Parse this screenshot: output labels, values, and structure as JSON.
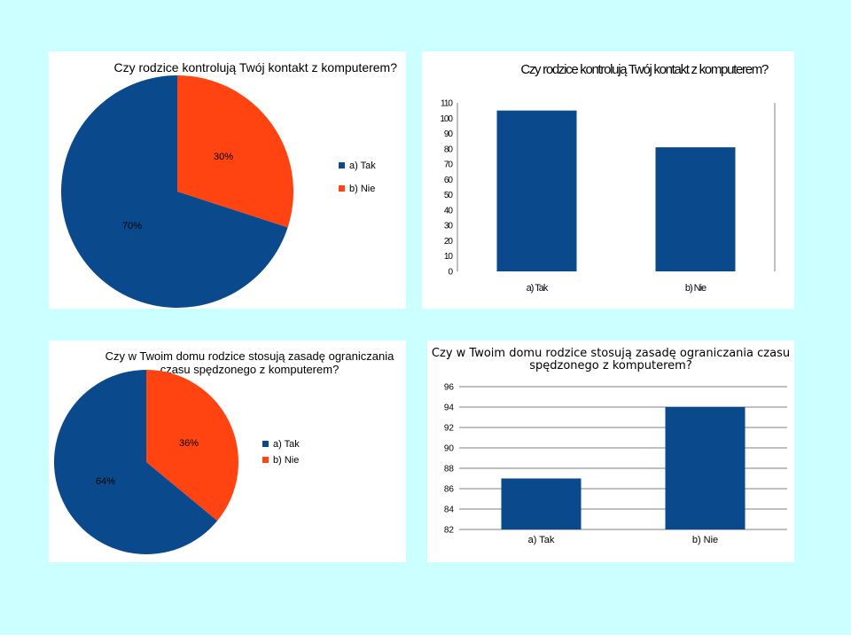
{
  "colors": {
    "tak": "#0a4a8c",
    "nie": "#ff4411",
    "background": "#ccffff",
    "panel": "#ffffff"
  },
  "chart_data": [
    {
      "type": "pie",
      "title": "Czy rodzice kontrolują Twój kontakt z komputerem?",
      "categories": [
        "a) Tak",
        "b) Nie"
      ],
      "values": [
        70,
        30
      ],
      "data_labels": [
        "70%",
        "30%"
      ],
      "legend": [
        "a) Tak",
        "b) Nie"
      ],
      "legend_position": "right"
    },
    {
      "type": "bar",
      "title": "Czy rodzice kontrolują Twój kontakt z komputerem?",
      "categories": [
        "a) Tak",
        "b) Nie"
      ],
      "values": [
        105,
        81
      ],
      "ylim": [
        0,
        110
      ],
      "yticks": [
        "110",
        "100",
        "90",
        "80",
        "70",
        "60",
        "50",
        "40",
        "30",
        "20",
        "10",
        "0"
      ],
      "grid": false
    },
    {
      "type": "pie",
      "title": "Czy w Twoim domu rodzice stosują zasadę ograniczania czasu spędzonego z komputerem?",
      "categories": [
        "a) Tak",
        "b) Nie"
      ],
      "values": [
        64,
        36
      ],
      "data_labels": [
        "64%",
        "36%"
      ],
      "legend": [
        "a) Tak",
        "b) Nie"
      ],
      "legend_position": "right"
    },
    {
      "type": "bar",
      "title": "Czy w Twoim domu rodzice stosują zasadę ograniczania czasu spędzonego z komputerem?",
      "categories": [
        "a) Tak",
        "b) Nie"
      ],
      "values": [
        87,
        94
      ],
      "ylim": [
        82,
        96
      ],
      "yticks": [
        "96",
        "94",
        "92",
        "90",
        "88",
        "86",
        "84",
        "82"
      ],
      "grid": true
    }
  ]
}
